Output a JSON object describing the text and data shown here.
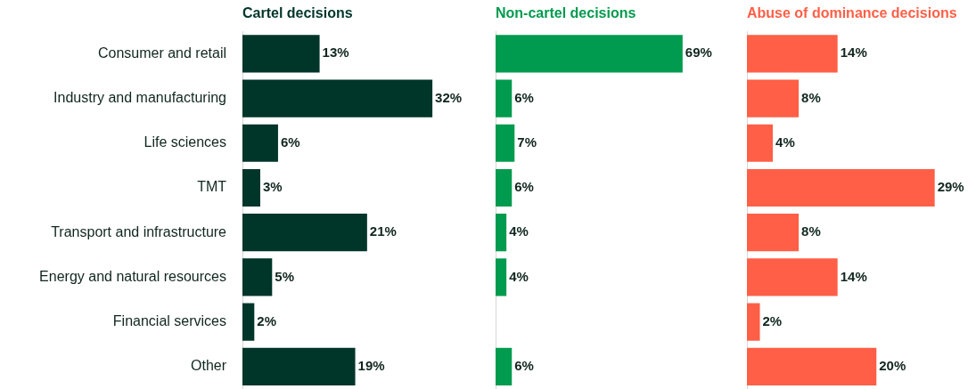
{
  "chart_data": [
    {
      "type": "bar",
      "orientation": "horizontal",
      "title": "Cartel decisions",
      "categories": [
        "Consumer and retail",
        "Industry and manufacturing",
        "Life sciences",
        "TMT",
        "Transport and infrastructure",
        "Energy and natural resources",
        "Financial services",
        "Other"
      ],
      "series": [
        {
          "color": "#00352a",
          "values": [
            13,
            32,
            6,
            3,
            21,
            5,
            2,
            19
          ],
          "value_labels": [
            "13%",
            "32%",
            "6%",
            "3%",
            "21%",
            "5%",
            "2%",
            "19%"
          ]
        }
      ],
      "tick_labels": "y",
      "grid": false,
      "legend": false
    },
    {
      "type": "bar",
      "orientation": "horizontal",
      "title": "Non-cartel decisions",
      "categories": [
        null,
        null,
        null,
        null,
        null,
        null,
        null,
        null
      ],
      "series": [
        {
          "color": "#009b4e",
          "values": [
            69,
            6,
            7,
            6,
            4,
            4,
            null,
            6
          ],
          "value_labels": [
            "69%",
            "6%",
            "7%",
            "6%",
            "4%",
            "4%",
            null,
            "6%"
          ]
        }
      ],
      "tick_labels": false,
      "grid": false,
      "legend": false
    },
    {
      "type": "bar",
      "orientation": "horizontal",
      "title": "Abuse of dominance decisions",
      "categories": [
        null,
        null,
        null,
        null,
        null,
        null,
        null,
        null
      ],
      "series": [
        {
          "color": "#ff5f46",
          "values": [
            14,
            8,
            4,
            29,
            8,
            14,
            2,
            20
          ],
          "value_labels": [
            "14%",
            "8%",
            "4%",
            "29%",
            "8%",
            "14%",
            "2%",
            "20%"
          ]
        }
      ],
      "tick_labels": false,
      "grid": false,
      "legend": false
    }
  ]
}
